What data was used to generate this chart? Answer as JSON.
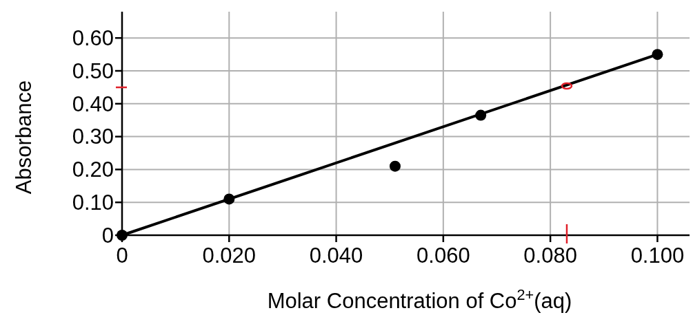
{
  "chart_data": {
    "type": "scatter",
    "xlabel": "Molar Concentration of Co$^{2+}$(aq)",
    "ylabel": "Absorbance",
    "x": [
      0,
      0.02,
      0.051,
      0.067,
      0.1
    ],
    "series": [
      {
        "color": "#000000",
        "marker": "circle",
        "values": [
          0,
          0.11,
          0.21,
          0.365,
          0.55
        ]
      },
      {
        "type": "line",
        "color": "#000000",
        "x": [
          0,
          0.1
        ],
        "values": [
          0,
          0.55
        ]
      }
    ],
    "xlim": [
      0,
      0.106
    ],
    "ylim": [
      0,
      0.68
    ],
    "xticks": [
      0,
      {
        "value": 0.02,
        "label": "0.020"
      },
      {
        "value": 0.04,
        "label": "0.040"
      },
      {
        "value": 0.06,
        "label": "0.060"
      },
      {
        "value": 0.08,
        "label": "0.080"
      },
      {
        "value": 0.1,
        "label": "0.100"
      }
    ],
    "yticks": [
      0,
      {
        "value": 0.1,
        "label": "0.10"
      },
      {
        "value": 0.2,
        "label": "0.20"
      },
      {
        "value": 0.3,
        "label": "0.30"
      },
      {
        "value": 0.4,
        "label": "0.40"
      },
      {
        "value": 0.5,
        "label": "0.50"
      },
      {
        "value": 0.6,
        "label": "0.60"
      }
    ],
    "grid": true
  }
}
